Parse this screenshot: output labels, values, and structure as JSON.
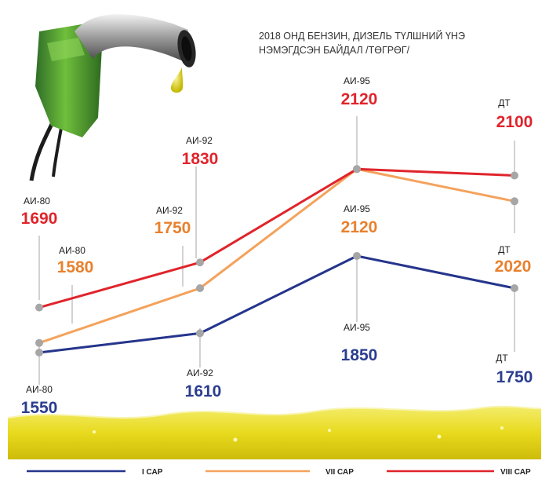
{
  "title": {
    "line1": "2018 ОНД БЕНЗИН, ДИЗЕЛЬ ТҮЛШНИЙ ҮНЭ",
    "line2": "НЭМЭГДСЭН БАЙДАЛ /ТӨГРӨГ/"
  },
  "colors": {
    "I САР": "#25358c",
    "VII САР": "#f4a25c",
    "VIII САР": "#e0242b",
    "label_I": "#2b3d8f",
    "label_VII": "#e8812e",
    "label_VIII": "#e0242b",
    "marker": "#a6a6a6",
    "leader": "#a6a6a6"
  },
  "chart_data": {
    "type": "line",
    "title": "2018 ОНД БЕНЗИН, ДИЗЕЛЬ ТҮЛШНИЙ ҮНЭ НЭМЭГДСЭН БАЙДАЛ /ТӨГРӨГ/",
    "categories": [
      "АИ-80",
      "АИ-92",
      "АИ-95",
      "ДТ"
    ],
    "ylabel": "",
    "xlabel": "",
    "legend_position": "bottom",
    "series": [
      {
        "name": "I САР",
        "values": [
          1550,
          1610,
          1850,
          1750
        ]
      },
      {
        "name": "VII САР",
        "values": [
          1580,
          1750,
          2120,
          2020
        ]
      },
      {
        "name": "VIII САР",
        "values": [
          1690,
          1830,
          2120,
          2100
        ]
      }
    ]
  },
  "legend": [
    "I САР",
    "VII САР",
    "VIII САР"
  ]
}
